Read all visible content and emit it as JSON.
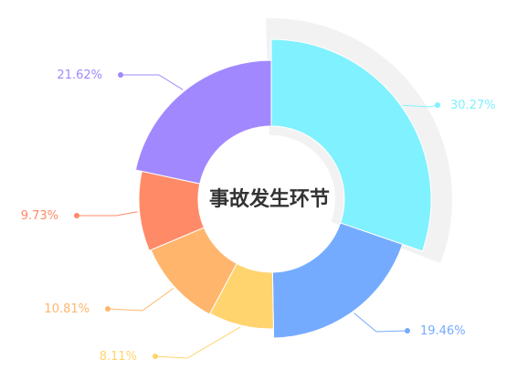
{
  "chart_data": {
    "type": "pie",
    "variant": "donut",
    "center_text": "事故发生环节",
    "slices": [
      {
        "value": 30.27,
        "label": "30.27%",
        "color": "#80f1fe",
        "highlighted": true
      },
      {
        "value": 19.46,
        "label": "19.46%",
        "color": "#75abfe"
      },
      {
        "value": 8.11,
        "label": "8.11%",
        "color": "#ffd46e"
      },
      {
        "value": 10.81,
        "label": "10.81%",
        "color": "#ffb56c"
      },
      {
        "value": 9.73,
        "label": "9.73%",
        "color": "#ff8a68"
      },
      {
        "value": 21.62,
        "label": "21.62%",
        "color": "#a288ff"
      }
    ],
    "highlight_color": "#f2f2f2",
    "legend": "none"
  }
}
